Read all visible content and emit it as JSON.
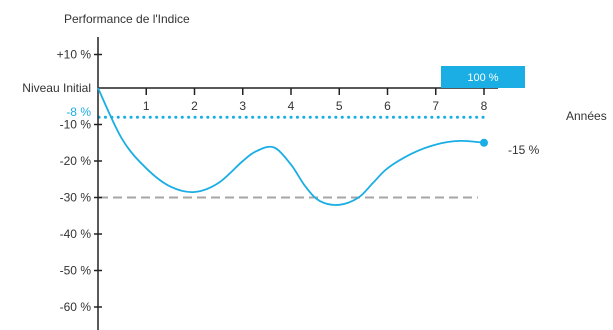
{
  "chart_data": {
    "type": "line",
    "title": "Performance de l'Indice",
    "xlabel": "Années",
    "ylabel": "",
    "xlim": [
      0,
      8
    ],
    "ylim": [
      -60,
      10
    ],
    "x_ticks": [
      1,
      2,
      3,
      4,
      5,
      6,
      7,
      8
    ],
    "y_ticks": [
      {
        "value": 10,
        "label": "+10 %"
      },
      {
        "value": 0,
        "label": "Niveau Initial"
      },
      {
        "value": -10,
        "label": "-10 %"
      },
      {
        "value": -20,
        "label": "-20 %"
      },
      {
        "value": -30,
        "label": "-30 %"
      },
      {
        "value": -40,
        "label": "-40 %"
      },
      {
        "value": -50,
        "label": "-50 %"
      },
      {
        "value": -60,
        "label": "-60 %"
      }
    ],
    "series": [
      {
        "values_x": [
          0,
          0.5,
          1,
          1.5,
          2,
          2.5,
          3,
          3.3,
          3.65,
          4,
          4.3,
          4.6,
          5,
          5.4,
          5.7,
          6,
          6.5,
          7,
          7.5,
          8
        ],
        "values_y": [
          0,
          -14,
          -22,
          -27,
          -28.5,
          -26,
          -20,
          -17.2,
          -16.3,
          -21,
          -27,
          -31,
          -32,
          -30,
          -26,
          -22,
          -18,
          -15.5,
          -14.5,
          -15
        ],
        "color": "#1aaee5"
      }
    ],
    "reference_lines": [
      {
        "value": -8,
        "label": "-8 %",
        "color": "#1aaee5",
        "style": "dotted"
      },
      {
        "value": -30,
        "color": "#a6a6a6",
        "style": "dashed"
      }
    ],
    "annotations": [
      {
        "text": "100 %",
        "color": "#1aaee5"
      },
      {
        "text": "-15 %"
      }
    ],
    "grid": false
  }
}
